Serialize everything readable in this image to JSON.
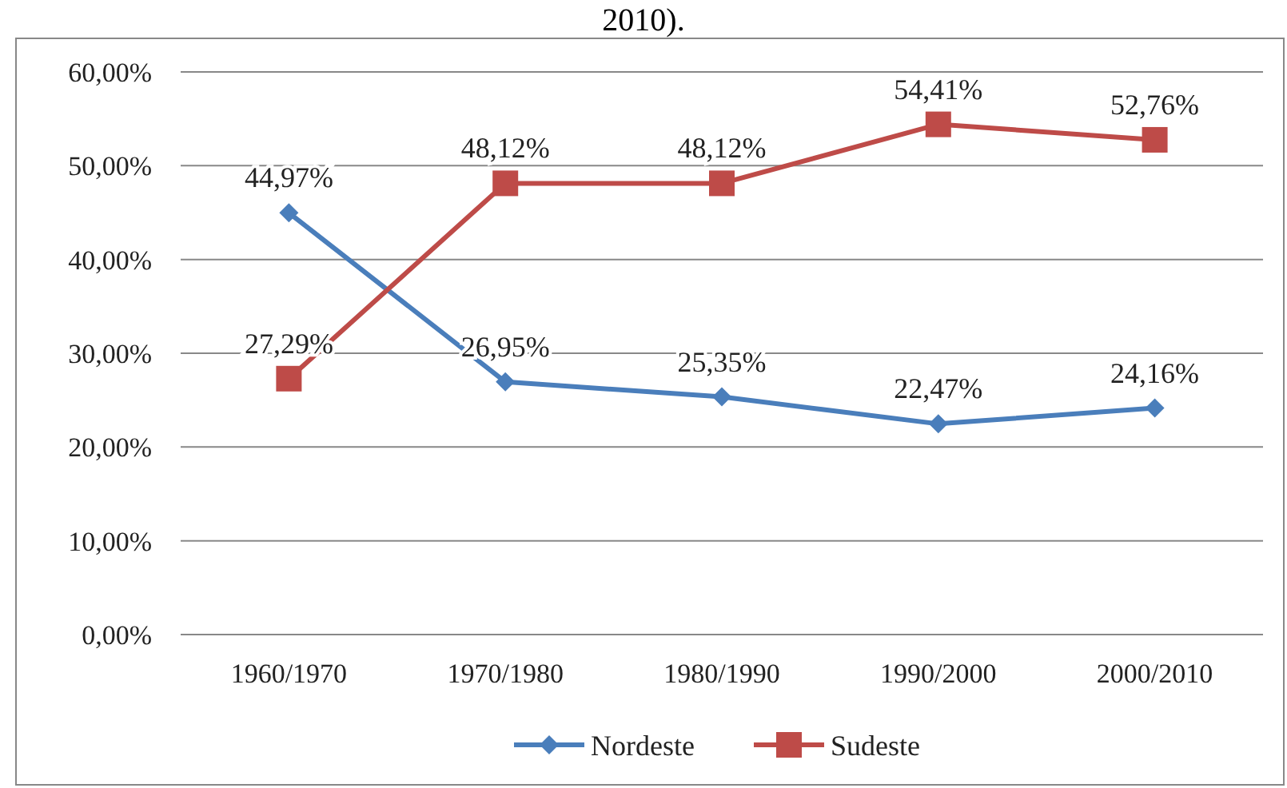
{
  "chart_data": {
    "type": "line",
    "title": "2010).",
    "categories": [
      "1960/1970",
      "1970/1980",
      "1980/1990",
      "1990/2000",
      "2000/2010"
    ],
    "series": [
      {
        "name": "Nordeste",
        "color": "#4a7ebb",
        "marker": "diamond",
        "values": [
          44.97,
          26.95,
          25.35,
          22.47,
          24.16
        ],
        "value_labels": [
          "44,97%",
          "26,95%",
          "25,35%",
          "22,47%",
          "24,16%"
        ]
      },
      {
        "name": "Sudeste",
        "color": "#be4b48",
        "marker": "square",
        "values": [
          27.29,
          48.12,
          48.12,
          54.41,
          52.76
        ],
        "value_labels": [
          "27,29%",
          "48,12%",
          "48,12%",
          "54,41%",
          "52,76%"
        ]
      }
    ],
    "ylim": [
      0,
      60
    ],
    "yticks": [
      {
        "value": 0,
        "label": "0,00%"
      },
      {
        "value": 10,
        "label": "10,00%"
      },
      {
        "value": 20,
        "label": "20,00%"
      },
      {
        "value": 30,
        "label": "30,00%"
      },
      {
        "value": 40,
        "label": "40,00%"
      },
      {
        "value": 50,
        "label": "50,00%"
      },
      {
        "value": 60,
        "label": "60,00%"
      }
    ],
    "grid": "y",
    "legend": "bottom"
  }
}
